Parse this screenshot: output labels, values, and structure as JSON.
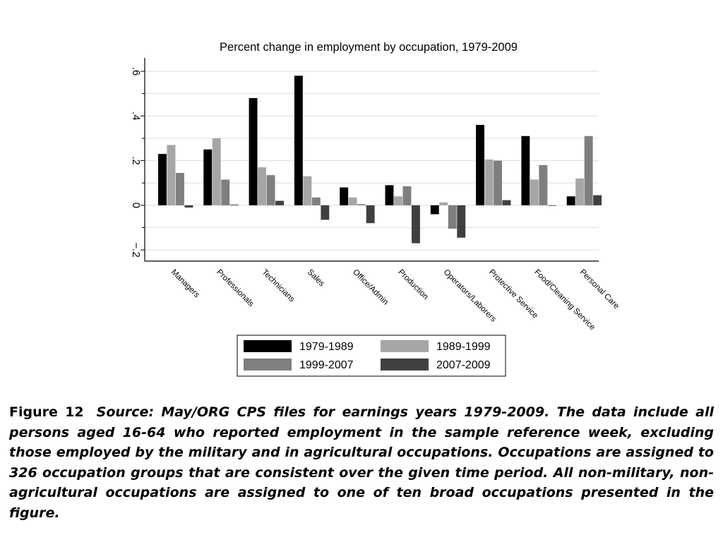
{
  "chart_data": {
    "type": "bar",
    "title": "Percent change in employment by occupation, 1979-2009",
    "categories": [
      "Managers",
      "Professionals",
      "Technicians",
      "Sales",
      "Office/Admin",
      "Production",
      "Operators/Laborers",
      "Protective Service",
      "Food/Cleaning Service",
      "Personal Care"
    ],
    "series": [
      {
        "name": "1979-1989",
        "color": "#000000",
        "values": [
          0.23,
          0.25,
          0.48,
          0.58,
          0.08,
          0.09,
          -0.04,
          0.36,
          0.31,
          0.04
        ]
      },
      {
        "name": "1989-1999",
        "color": "#a6a6a6",
        "values": [
          0.27,
          0.3,
          0.17,
          0.13,
          0.035,
          0.04,
          0.013,
          0.205,
          0.115,
          0.12
        ]
      },
      {
        "name": "1999-2007",
        "color": "#7f7f7f",
        "values": [
          0.145,
          0.115,
          0.135,
          0.035,
          0.005,
          0.085,
          -0.105,
          0.2,
          0.18,
          0.31
        ]
      },
      {
        "name": "2007-2009",
        "color": "#404040",
        "values": [
          -0.01,
          0.003,
          0.02,
          -0.065,
          -0.08,
          -0.17,
          -0.145,
          0.023,
          -0.002,
          0.045
        ]
      }
    ],
    "ylim": [
      -0.25,
      0.66
    ],
    "yticks": [
      -0.2,
      0,
      0.2,
      0.4,
      0.6
    ],
    "ytick_labels": [
      "−.2",
      "0",
      ".2",
      ".4",
      ".6"
    ],
    "minor_yticks": [
      -0.1,
      0.1,
      0.3,
      0.5
    ],
    "gridlines": true,
    "legend_position": "bottom-center"
  },
  "caption": {
    "label": "Figure 12",
    "text": "Source: May/ORG CPS files for earnings years 1979-2009. The data include all persons aged 16-64 who reported employment in the sample reference week, excluding those employed by the military and in agricultural occupations. Occupations are assigned to 326 occupation groups that are consistent over the given time period. All non-military, non-agricultural occupations are assigned to one of ten broad occupations presented in the figure."
  }
}
